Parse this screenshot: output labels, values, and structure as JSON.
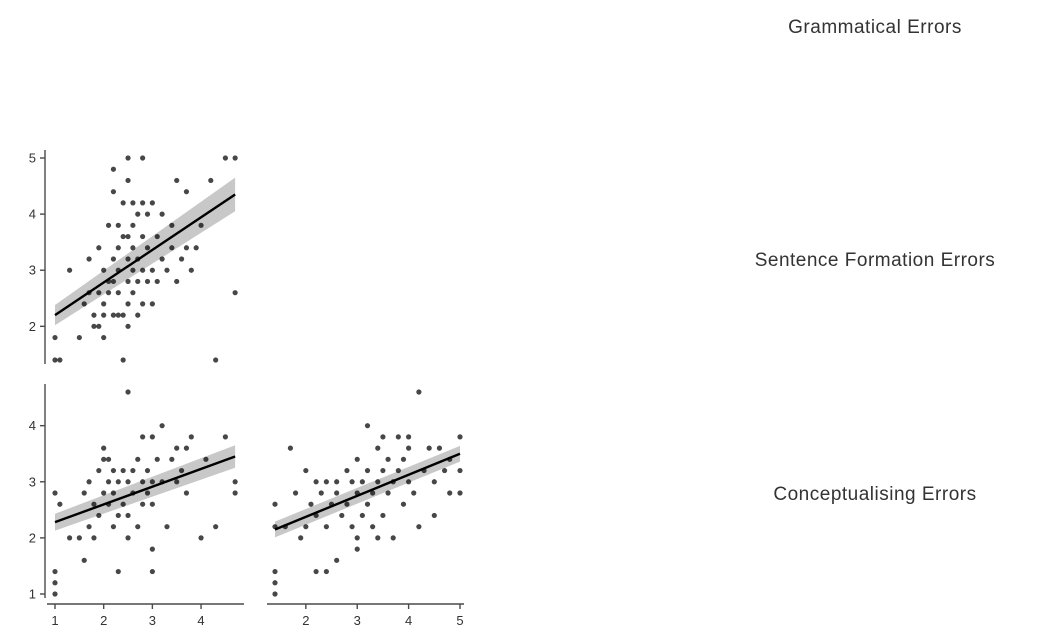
{
  "variables": [
    "Grammatical Errors",
    "Sentence Formation Errors",
    "Conceptualising Errors"
  ],
  "colors": {
    "points": "#000000",
    "fit_line": "#000000",
    "confidence_band": "#b5b5b5",
    "axes": "#4a4a4a"
  },
  "chart_data": [
    {
      "type": "scatter",
      "x_variable": "Grammatical Errors",
      "y_variable": "Sentence Formation Errors",
      "xlim": [
        1,
        4.8
      ],
      "ylim": [
        1.4,
        5
      ],
      "xticks": [
        1,
        2,
        3,
        4
      ],
      "yticks": [
        2,
        3,
        4,
        5
      ],
      "regression": {
        "x": [
          1,
          4.7
        ],
        "y": [
          2.2,
          4.35
        ],
        "ci_start": 0.18,
        "ci_end": 0.3
      },
      "points": [
        [
          1,
          1.4
        ],
        [
          1.1,
          1.4
        ],
        [
          1,
          1.8
        ],
        [
          1.3,
          3.0
        ],
        [
          1.5,
          1.8
        ],
        [
          1.6,
          2.4
        ],
        [
          1.7,
          2.6
        ],
        [
          1.7,
          3.2
        ],
        [
          1.8,
          2.0
        ],
        [
          1.8,
          2.2
        ],
        [
          1.9,
          2.6
        ],
        [
          1.9,
          3.4
        ],
        [
          1.9,
          2.0
        ],
        [
          2.0,
          2.2
        ],
        [
          2.0,
          2.4
        ],
        [
          2.0,
          3.0
        ],
        [
          2.0,
          1.8
        ],
        [
          2.1,
          2.6
        ],
        [
          2.1,
          2.8
        ],
        [
          2.1,
          3.8
        ],
        [
          2.2,
          2.2
        ],
        [
          2.2,
          2.8
        ],
        [
          2.2,
          3.2
        ],
        [
          2.2,
          4.4
        ],
        [
          2.2,
          4.8
        ],
        [
          2.3,
          2.2
        ],
        [
          2.3,
          2.6
        ],
        [
          2.3,
          3.0
        ],
        [
          2.3,
          3.4
        ],
        [
          2.3,
          3.8
        ],
        [
          2.4,
          2.2
        ],
        [
          2.4,
          3.6
        ],
        [
          2.4,
          4.2
        ],
        [
          2.4,
          1.4
        ],
        [
          2.5,
          2.0
        ],
        [
          2.5,
          2.4
        ],
        [
          2.5,
          2.8
        ],
        [
          2.5,
          3.2
        ],
        [
          2.5,
          3.6
        ],
        [
          2.5,
          4.6
        ],
        [
          2.5,
          5.0
        ],
        [
          2.6,
          2.6
        ],
        [
          2.6,
          3.0
        ],
        [
          2.6,
          3.4
        ],
        [
          2.6,
          3.8
        ],
        [
          2.6,
          4.2
        ],
        [
          2.7,
          2.2
        ],
        [
          2.7,
          2.8
        ],
        [
          2.7,
          3.2
        ],
        [
          2.7,
          4.0
        ],
        [
          2.8,
          2.4
        ],
        [
          2.8,
          3.0
        ],
        [
          2.8,
          3.6
        ],
        [
          2.8,
          4.2
        ],
        [
          2.8,
          5.0
        ],
        [
          2.9,
          2.8
        ],
        [
          2.9,
          3.4
        ],
        [
          2.9,
          4.0
        ],
        [
          3.0,
          2.4
        ],
        [
          3.0,
          3.0
        ],
        [
          3.0,
          4.2
        ],
        [
          3.1,
          2.8
        ],
        [
          3.1,
          3.6
        ],
        [
          3.2,
          3.2
        ],
        [
          3.2,
          4.0
        ],
        [
          3.3,
          3.0
        ],
        [
          3.4,
          3.4
        ],
        [
          3.4,
          3.8
        ],
        [
          3.5,
          2.8
        ],
        [
          3.5,
          4.6
        ],
        [
          3.6,
          3.2
        ],
        [
          3.7,
          3.4
        ],
        [
          3.7,
          4.4
        ],
        [
          3.8,
          3.0
        ],
        [
          3.9,
          3.4
        ],
        [
          4.0,
          3.8
        ],
        [
          4.2,
          4.6
        ],
        [
          4.3,
          1.4
        ],
        [
          4.5,
          5.0
        ],
        [
          4.7,
          5.0
        ],
        [
          4.7,
          2.6
        ]
      ]
    },
    {
      "type": "scatter",
      "x_variable": "Grammatical Errors",
      "y_variable": "Conceptualising Errors",
      "xlim": [
        1,
        4.8
      ],
      "ylim": [
        1,
        4.6
      ],
      "xticks": [
        1,
        2,
        3,
        4
      ],
      "yticks": [
        1,
        2,
        3,
        4
      ],
      "regression": {
        "x": [
          1,
          4.7
        ],
        "y": [
          2.28,
          3.45
        ],
        "ci_start": 0.15,
        "ci_end": 0.2
      },
      "points": [
        [
          1,
          1.0
        ],
        [
          1,
          1.2
        ],
        [
          1,
          1.4
        ],
        [
          1,
          2.8
        ],
        [
          1.1,
          2.6
        ],
        [
          1.3,
          2.0
        ],
        [
          1.5,
          2.0
        ],
        [
          1.6,
          1.6
        ],
        [
          1.6,
          2.8
        ],
        [
          1.7,
          2.2
        ],
        [
          1.7,
          3.0
        ],
        [
          1.8,
          2.0
        ],
        [
          1.8,
          2.6
        ],
        [
          1.9,
          2.4
        ],
        [
          1.9,
          3.2
        ],
        [
          2.0,
          2.8
        ],
        [
          2.0,
          3.4
        ],
        [
          2.0,
          3.6
        ],
        [
          2.1,
          2.6
        ],
        [
          2.1,
          3.0
        ],
        [
          2.1,
          3.4
        ],
        [
          2.2,
          2.2
        ],
        [
          2.2,
          2.8
        ],
        [
          2.2,
          3.2
        ],
        [
          2.3,
          1.4
        ],
        [
          2.3,
          2.4
        ],
        [
          2.3,
          3.0
        ],
        [
          2.4,
          2.6
        ],
        [
          2.4,
          3.2
        ],
        [
          2.5,
          2.0
        ],
        [
          2.5,
          2.4
        ],
        [
          2.5,
          3.0
        ],
        [
          2.5,
          4.6
        ],
        [
          2.6,
          2.8
        ],
        [
          2.6,
          3.2
        ],
        [
          2.7,
          2.2
        ],
        [
          2.7,
          3.4
        ],
        [
          2.8,
          2.6
        ],
        [
          2.8,
          3.0
        ],
        [
          2.8,
          3.8
        ],
        [
          2.9,
          2.8
        ],
        [
          2.9,
          3.2
        ],
        [
          3.0,
          1.4
        ],
        [
          3.0,
          1.8
        ],
        [
          3.0,
          2.6
        ],
        [
          3.0,
          3.0
        ],
        [
          3.0,
          3.8
        ],
        [
          3.1,
          3.4
        ],
        [
          3.2,
          3.0
        ],
        [
          3.2,
          4.0
        ],
        [
          3.3,
          2.2
        ],
        [
          3.4,
          3.4
        ],
        [
          3.5,
          3.0
        ],
        [
          3.5,
          3.6
        ],
        [
          3.6,
          3.2
        ],
        [
          3.7,
          2.8
        ],
        [
          3.7,
          3.6
        ],
        [
          3.8,
          3.8
        ],
        [
          4.0,
          2.0
        ],
        [
          4.1,
          3.4
        ],
        [
          4.3,
          2.2
        ],
        [
          4.5,
          3.8
        ],
        [
          4.7,
          2.8
        ],
        [
          4.7,
          3.0
        ]
      ]
    },
    {
      "type": "scatter",
      "x_variable": "Sentence Formation Errors",
      "y_variable": "Conceptualising Errors",
      "xlim": [
        1.4,
        5
      ],
      "ylim": [
        1,
        4.6
      ],
      "xticks": [
        2,
        3,
        4,
        5
      ],
      "yticks": [],
      "regression": {
        "x": [
          1.4,
          5
        ],
        "y": [
          2.15,
          3.5
        ],
        "ci_start": 0.14,
        "ci_end": 0.14
      },
      "points": [
        [
          1.4,
          1.0
        ],
        [
          1.4,
          1.2
        ],
        [
          1.4,
          1.4
        ],
        [
          1.4,
          2.2
        ],
        [
          1.4,
          2.6
        ],
        [
          1.6,
          2.2
        ],
        [
          1.7,
          3.6
        ],
        [
          1.8,
          2.8
        ],
        [
          1.9,
          2.0
        ],
        [
          2.0,
          2.2
        ],
        [
          2.0,
          3.2
        ],
        [
          2.1,
          2.6
        ],
        [
          2.2,
          1.4
        ],
        [
          2.2,
          2.4
        ],
        [
          2.2,
          3.0
        ],
        [
          2.3,
          2.8
        ],
        [
          2.4,
          1.4
        ],
        [
          2.4,
          2.2
        ],
        [
          2.4,
          3.0
        ],
        [
          2.5,
          2.6
        ],
        [
          2.6,
          1.6
        ],
        [
          2.6,
          2.8
        ],
        [
          2.6,
          3.0
        ],
        [
          2.7,
          2.4
        ],
        [
          2.8,
          2.6
        ],
        [
          2.8,
          3.2
        ],
        [
          2.9,
          2.2
        ],
        [
          2.9,
          3.0
        ],
        [
          3.0,
          1.8
        ],
        [
          3.0,
          2.0
        ],
        [
          3.0,
          2.8
        ],
        [
          3.0,
          3.4
        ],
        [
          3.1,
          2.4
        ],
        [
          3.1,
          3.0
        ],
        [
          3.2,
          2.6
        ],
        [
          3.2,
          3.2
        ],
        [
          3.2,
          4.0
        ],
        [
          3.3,
          2.2
        ],
        [
          3.3,
          2.8
        ],
        [
          3.4,
          2.0
        ],
        [
          3.4,
          3.0
        ],
        [
          3.4,
          3.6
        ],
        [
          3.5,
          2.4
        ],
        [
          3.5,
          3.2
        ],
        [
          3.5,
          3.8
        ],
        [
          3.6,
          2.8
        ],
        [
          3.6,
          3.4
        ],
        [
          3.7,
          2.0
        ],
        [
          3.7,
          3.0
        ],
        [
          3.8,
          3.2
        ],
        [
          3.8,
          3.8
        ],
        [
          3.9,
          2.6
        ],
        [
          3.9,
          3.4
        ],
        [
          4.0,
          3.0
        ],
        [
          4.0,
          3.6
        ],
        [
          4.0,
          3.8
        ],
        [
          4.1,
          2.8
        ],
        [
          4.2,
          2.2
        ],
        [
          4.2,
          4.6
        ],
        [
          4.3,
          3.2
        ],
        [
          4.4,
          3.6
        ],
        [
          4.5,
          2.4
        ],
        [
          4.5,
          3.0
        ],
        [
          4.6,
          3.6
        ],
        [
          4.7,
          3.2
        ],
        [
          4.8,
          2.8
        ],
        [
          4.8,
          3.4
        ],
        [
          5.0,
          2.8
        ],
        [
          5.0,
          3.2
        ],
        [
          5.0,
          3.8
        ]
      ]
    }
  ]
}
